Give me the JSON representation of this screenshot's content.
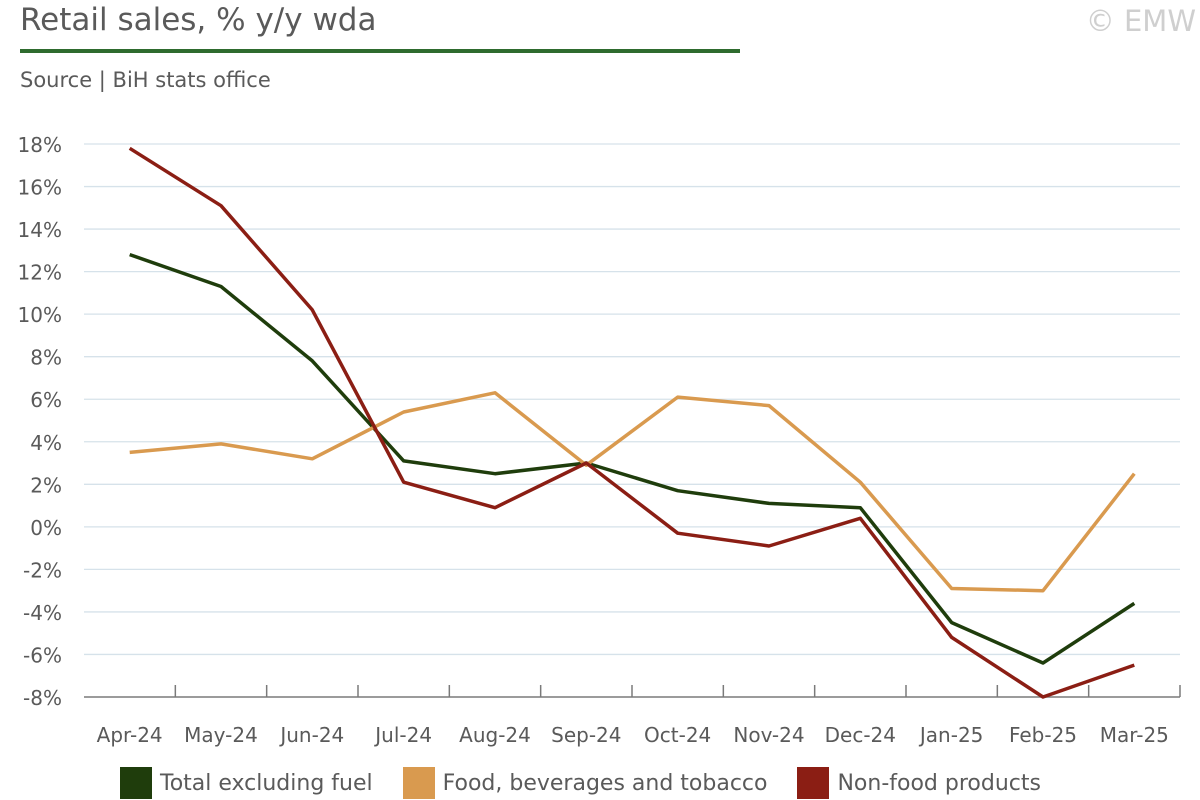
{
  "header": {
    "title": "Retail sales, % y/y wda",
    "source": "Source | BiH stats office",
    "copyright": "© EMW",
    "rule_color": "#2e6b2e"
  },
  "chart_data": {
    "type": "line",
    "categories": [
      "Apr-24",
      "May-24",
      "Jun-24",
      "Jul-24",
      "Aug-24",
      "Sep-24",
      "Oct-24",
      "Nov-24",
      "Dec-24",
      "Jan-25",
      "Feb-25",
      "Mar-25"
    ],
    "ylim": [
      -8,
      18
    ],
    "yticks": [
      18,
      16,
      14,
      12,
      10,
      8,
      6,
      4,
      2,
      0,
      -2,
      -4,
      -6,
      -8
    ],
    "ytick_labels": [
      "18%",
      "16%",
      "14%",
      "12%",
      "10%",
      "8%",
      "6%",
      "4%",
      "2%",
      "0%",
      "-2%",
      "-4%",
      "-6%",
      "-8%"
    ],
    "grid": true,
    "legend_position": "bottom",
    "series": [
      {
        "name": "Total excluding fuel",
        "color": "#1f3d0c",
        "values": [
          12.8,
          11.3,
          7.8,
          3.1,
          2.5,
          3.0,
          1.7,
          1.1,
          0.9,
          -4.5,
          -6.4,
          -3.6
        ]
      },
      {
        "name": "Food, beverages and tobacco",
        "color": "#d99a4f",
        "values": [
          3.5,
          3.9,
          3.2,
          5.4,
          6.3,
          2.9,
          6.1,
          5.7,
          2.1,
          -2.9,
          -3.0,
          2.5
        ]
      },
      {
        "name": "Non-food products",
        "color": "#8b1e14",
        "values": [
          17.8,
          15.1,
          10.2,
          2.1,
          0.9,
          3.0,
          -0.3,
          -0.9,
          0.4,
          -5.2,
          -8.0,
          -6.5
        ]
      }
    ]
  }
}
